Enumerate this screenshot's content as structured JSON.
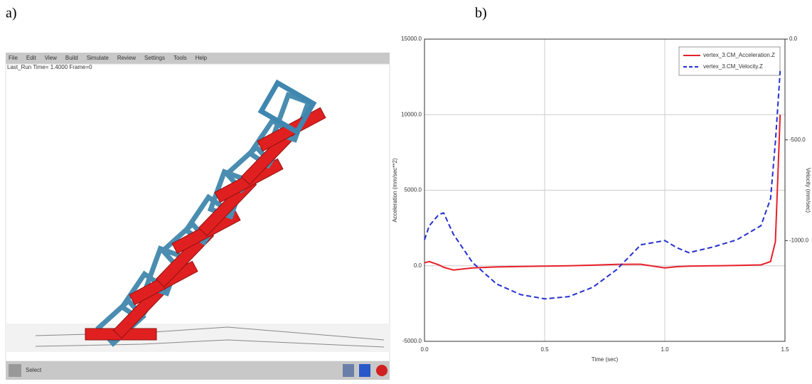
{
  "panels": [
    "a)",
    "b)"
  ],
  "screenshot": {
    "menu": [
      "File",
      "Edit",
      "View",
      "Build",
      "Simulate",
      "Review",
      "Settings",
      "Tools",
      "Help"
    ],
    "status_line": "Last_Run   Time= 1.4000  Frame=0",
    "status_bar": "Select"
  },
  "chart_data": {
    "type": "line",
    "xlabel": "Time (sec)",
    "ylabel": "Acceleration (mm/sec**2)",
    "y2label": "Velocity (mm/sec)",
    "x": [
      0,
      0.02,
      0.06,
      0.08,
      0.12,
      0.2,
      0.3,
      0.4,
      0.5,
      0.6,
      0.7,
      0.8,
      0.9,
      1.0,
      1.05,
      1.1,
      1.2,
      1.3,
      1.4,
      1.44,
      1.46,
      1.47,
      1.48
    ],
    "series": [
      {
        "name": "vertex_3.CM_Acceleration.Z",
        "color": "#e8202a",
        "dash": false,
        "values": [
          200,
          280,
          60,
          -100,
          -280,
          -140,
          -80,
          -50,
          -20,
          0,
          40,
          90,
          100,
          -140,
          -60,
          -20,
          0,
          20,
          60,
          280,
          1600,
          5800,
          10000
        ]
      },
      {
        "name": "vertex_3.CM_Velocity.Z",
        "color": "#2430d0",
        "dash": true,
        "axis": "y2",
        "values": [
          -996,
          -926,
          -870,
          -863,
          -968,
          -1109,
          -1215,
          -1268,
          -1289,
          -1278,
          -1232,
          -1144,
          -1021,
          -1000,
          -1035,
          -1060,
          -1032,
          -996,
          -926,
          -792,
          -511,
          -335,
          -158
        ]
      }
    ],
    "xlim": [
      0,
      1.5
    ],
    "xticks": [
      {
        "value": 0,
        "label": "0.0"
      },
      0.5,
      {
        "value": 1,
        "label": "1.0"
      },
      1.5
    ],
    "ylim": [
      -5000,
      15000
    ],
    "yticks": [
      {
        "value": -5000,
        "label": "-5000.0"
      },
      {
        "value": 0,
        "label": "0.0"
      },
      {
        "value": 5000,
        "label": "5000.0"
      },
      {
        "value": 10000,
        "label": "10000.0"
      },
      {
        "value": 15000,
        "label": "15000.0"
      }
    ],
    "y2lim": [
      -1500,
      0
    ],
    "y2ticks": [
      {
        "value": -1000,
        "label": "-1000.0"
      },
      {
        "value": -500,
        "label": "-500.0"
      },
      {
        "value": 0,
        "label": "0.0"
      }
    ],
    "grid": true,
    "legend": "upper right"
  }
}
